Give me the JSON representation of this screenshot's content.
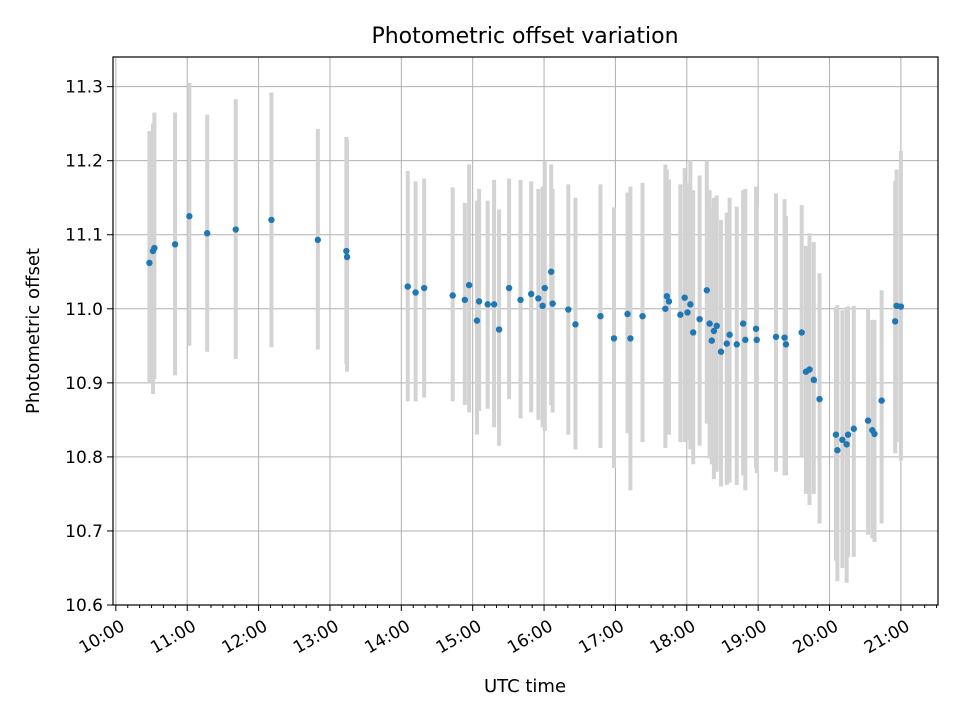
{
  "chart_data": {
    "type": "scatter",
    "title": "Photometric offset variation",
    "xlabel": "UTC time",
    "ylabel": "Photometric offset",
    "xlim": [
      9.96,
      21.52
    ],
    "ylim": [
      10.6,
      11.34
    ],
    "xticks": [
      "10:00",
      "11:00",
      "12:00",
      "13:00",
      "14:00",
      "15:00",
      "16:00",
      "17:00",
      "18:00",
      "19:00",
      "20:00",
      "21:00"
    ],
    "yticks": [
      "10.6",
      "10.7",
      "10.8",
      "10.9",
      "11.0",
      "11.1",
      "11.2",
      "11.3"
    ],
    "grid": true,
    "colors": {
      "point": "#1f77b4",
      "errorbar": "#d3d3d3",
      "grid": "#b0b0b0"
    },
    "series": [
      {
        "name": "offset",
        "x": [
          10.47,
          10.52,
          10.54,
          10.83,
          11.03,
          11.28,
          11.68,
          12.18,
          12.83,
          13.23,
          13.24,
          14.09,
          14.2,
          14.32,
          14.72,
          14.89,
          14.95,
          15.06,
          15.09,
          15.21,
          15.3,
          15.37,
          15.51,
          15.67,
          15.82,
          15.92,
          15.98,
          16.01,
          16.1,
          16.12,
          16.34,
          16.44,
          16.79,
          16.98,
          17.17,
          17.21,
          17.38,
          17.7,
          17.72,
          17.75,
          17.91,
          17.97,
          18.01,
          18.05,
          18.09,
          18.18,
          18.28,
          18.32,
          18.35,
          18.38,
          18.42,
          18.48,
          18.56,
          18.6,
          18.7,
          18.79,
          18.82,
          18.97,
          18.98,
          19.25,
          19.37,
          19.39,
          19.61,
          19.67,
          19.72,
          19.78,
          19.86,
          20.09,
          20.11,
          20.18,
          20.24,
          20.26,
          20.34,
          20.54,
          20.6,
          20.63,
          20.73,
          20.92,
          20.94,
          21.0
        ],
        "y": [
          11.062,
          11.078,
          11.082,
          11.087,
          11.125,
          11.102,
          11.107,
          11.12,
          11.093,
          11.078,
          11.07,
          11.03,
          11.022,
          11.028,
          11.018,
          11.012,
          11.032,
          10.984,
          11.01,
          11.006,
          11.006,
          10.972,
          11.028,
          11.012,
          11.02,
          11.014,
          11.004,
          11.028,
          11.05,
          11.007,
          10.999,
          10.979,
          10.99,
          10.96,
          10.993,
          10.96,
          10.99,
          11.0,
          11.017,
          11.01,
          10.992,
          11.015,
          10.995,
          11.006,
          10.968,
          10.986,
          11.025,
          10.98,
          10.957,
          10.97,
          10.977,
          10.942,
          10.953,
          10.965,
          10.952,
          10.98,
          10.958,
          10.973,
          10.958,
          10.962,
          10.961,
          10.952,
          10.968,
          10.915,
          10.918,
          10.904,
          10.878,
          10.83,
          10.809,
          10.823,
          10.817,
          10.83,
          10.838,
          10.849,
          10.836,
          10.831,
          10.876,
          10.983,
          11.004,
          11.003
        ],
        "ylow": [
          10.9,
          10.885,
          10.905,
          10.91,
          10.95,
          10.942,
          10.932,
          10.948,
          10.945,
          10.925,
          10.915,
          10.875,
          10.875,
          10.88,
          10.875,
          10.87,
          10.86,
          10.83,
          10.862,
          10.865,
          10.84,
          10.815,
          10.878,
          10.852,
          10.86,
          10.85,
          10.84,
          10.835,
          10.87,
          10.86,
          10.83,
          10.81,
          10.812,
          10.785,
          10.832,
          10.755,
          10.82,
          10.812,
          10.85,
          10.83,
          10.82,
          10.82,
          10.822,
          10.81,
          10.79,
          10.815,
          10.845,
          10.798,
          10.79,
          10.77,
          10.78,
          10.76,
          10.762,
          10.765,
          10.762,
          10.775,
          10.755,
          10.785,
          10.778,
          10.78,
          10.775,
          10.775,
          10.8,
          10.75,
          10.735,
          10.75,
          10.71,
          10.66,
          10.632,
          10.65,
          10.63,
          10.665,
          10.665,
          10.695,
          10.69,
          10.685,
          10.71,
          10.805,
          10.82,
          10.795
        ],
        "yhigh": [
          11.24,
          11.25,
          11.265,
          11.265,
          11.305,
          11.262,
          11.283,
          11.292,
          11.243,
          11.232,
          11.228,
          11.186,
          11.172,
          11.176,
          11.164,
          11.143,
          11.195,
          11.146,
          11.162,
          11.146,
          11.174,
          11.134,
          11.176,
          11.174,
          11.172,
          11.162,
          11.165,
          11.2,
          11.195,
          11.162,
          11.168,
          11.15,
          11.168,
          11.137,
          11.157,
          11.165,
          11.17,
          11.195,
          11.188,
          11.175,
          11.168,
          11.19,
          11.17,
          11.2,
          11.16,
          11.18,
          11.2,
          11.16,
          11.136,
          11.15,
          11.153,
          11.12,
          11.13,
          11.15,
          11.138,
          11.16,
          11.162,
          11.165,
          11.14,
          11.156,
          11.148,
          11.125,
          11.14,
          11.085,
          11.102,
          11.09,
          11.048,
          11.002,
          11.005,
          10.998,
          11.002,
          11.003,
          11.004,
          11.0,
          10.985,
          10.985,
          11.025,
          11.173,
          11.188,
          11.213
        ]
      }
    ]
  }
}
